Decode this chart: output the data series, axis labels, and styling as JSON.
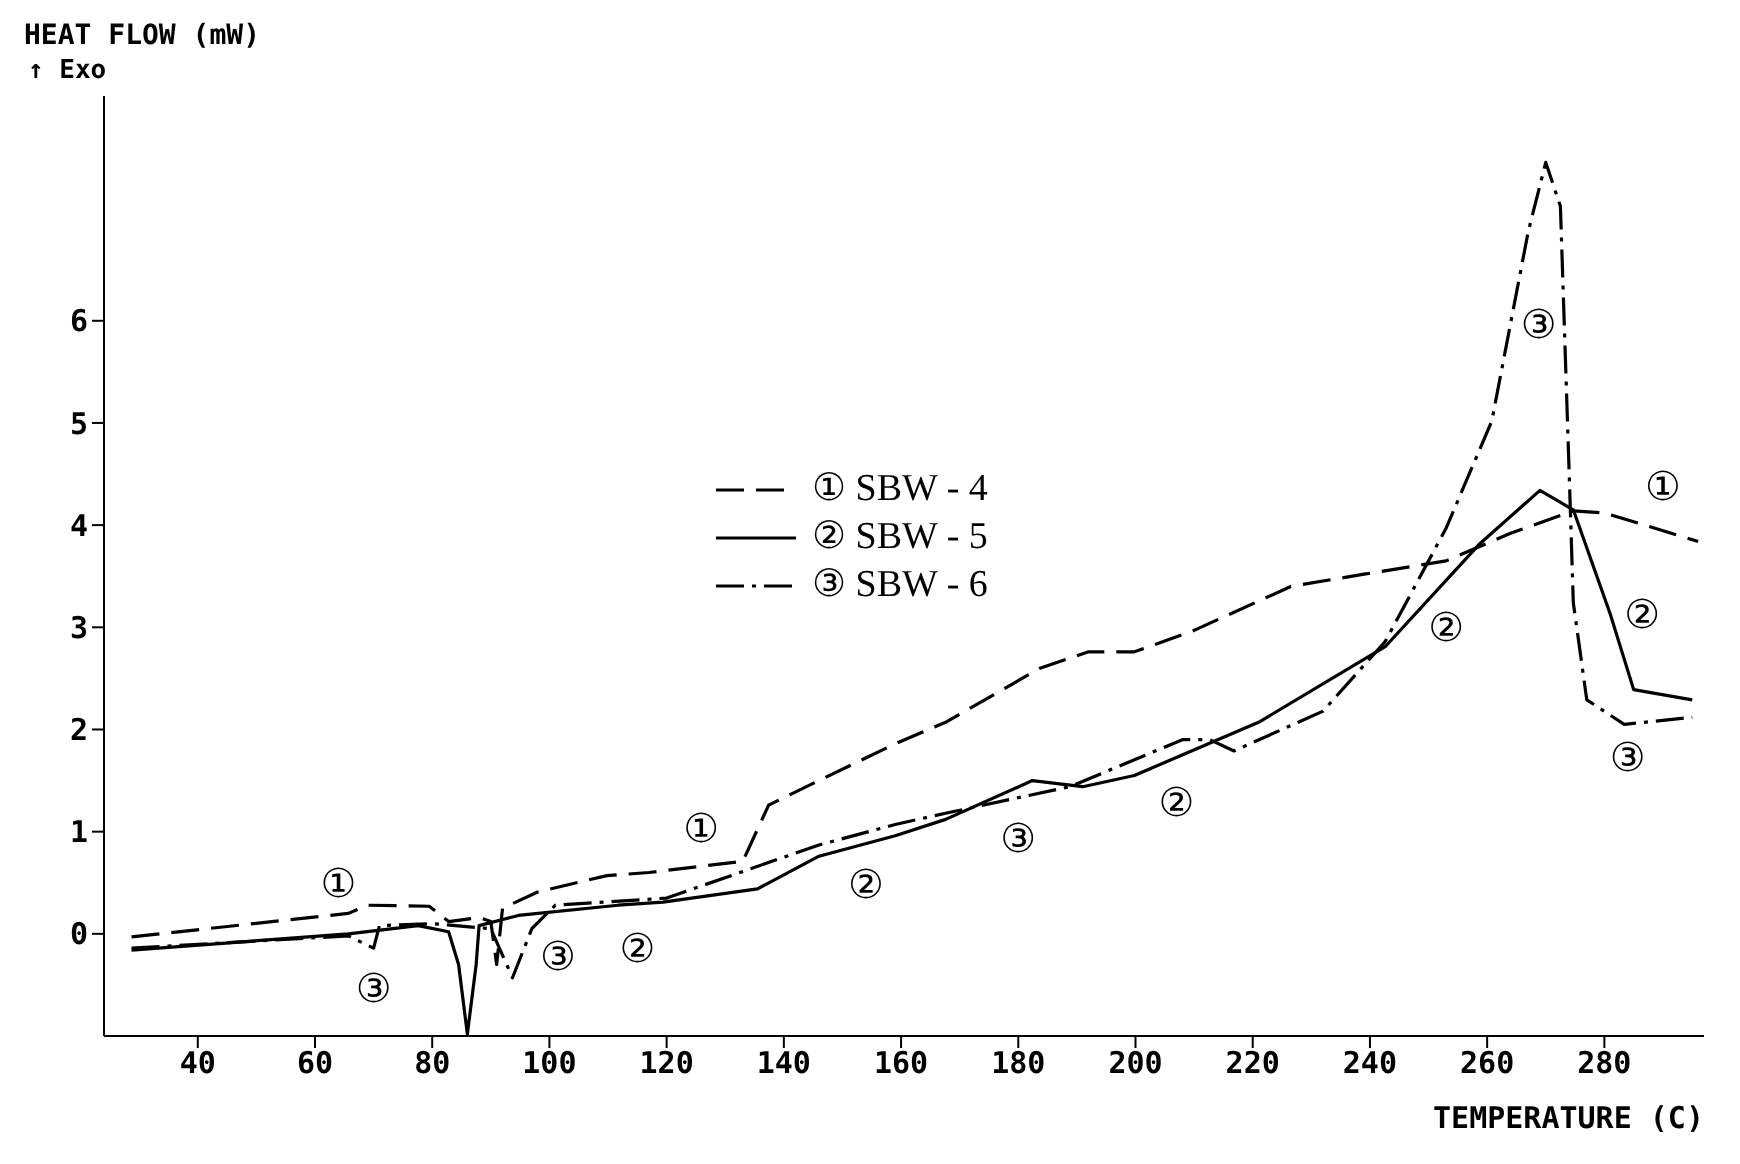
{
  "chart_data": {
    "type": "line",
    "xlabel": "TEMPERATURE (C)",
    "ylabel": "HEAT FLOW (mW)",
    "subtitle": "↑ Exo",
    "xlim": [
      24,
      297
    ],
    "ylim": [
      -1,
      8.2
    ],
    "xticks": [
      40,
      60,
      80,
      100,
      120,
      140,
      160,
      180,
      200,
      220,
      240,
      260,
      280
    ],
    "yticks": [
      0,
      1,
      2,
      3,
      4,
      5,
      6
    ],
    "grid": false,
    "legend": "center",
    "marker": "none",
    "series": [
      {
        "name": "① SBW - 4",
        "color": "#000000",
        "line_style": "dashed",
        "x": [
          28.7,
          65.7,
          69,
          79.5,
          82.8,
          88,
          90,
          91,
          92,
          98,
          109.8,
          117,
          133,
          137.4,
          146,
          159,
          167.6,
          183.7,
          192,
          199.8,
          210,
          226.5,
          239,
          253,
          264,
          274.7,
          280,
          296
        ],
        "values": [
          -0.03,
          0.2,
          0.28,
          0.27,
          0.12,
          0.16,
          0.12,
          -0.3,
          0.25,
          0.41,
          0.57,
          0.6,
          0.71,
          1.26,
          1.5,
          1.86,
          2.07,
          2.6,
          2.76,
          2.76,
          2.97,
          3.4,
          3.52,
          3.65,
          3.92,
          4.14,
          4.12,
          3.84
        ]
      },
      {
        "name": "② SBW - 5",
        "color": "#000000",
        "line_style": "solid",
        "x": [
          28.7,
          65.7,
          77.6,
          82.8,
          84.5,
          86,
          87.5,
          88,
          94.7,
          111.7,
          119.4,
          135.5,
          146,
          159,
          167.6,
          182.4,
          191,
          199.8,
          221,
          242.6,
          258.6,
          269,
          274.7,
          281,
          285,
          295
        ],
        "values": [
          -0.16,
          0,
          0.08,
          0.02,
          -0.3,
          -0.98,
          -0.3,
          0.08,
          0.18,
          0.28,
          0.31,
          0.44,
          0.76,
          0.96,
          1.12,
          1.5,
          1.44,
          1.55,
          2.07,
          2.81,
          3.81,
          4.34,
          4.15,
          3.13,
          2.39,
          2.29
        ]
      },
      {
        "name": "③ SBW - 6",
        "color": "#000000",
        "line_style": "dashdot",
        "x": [
          28.7,
          65.7,
          70,
          71,
          80,
          90,
          93.7,
          97,
          101,
          120,
          146,
          159,
          167.6,
          188.8,
          208,
          212.7,
          216.8,
          232,
          242.6,
          253,
          260.8,
          267,
          270,
          272.5,
          274,
          274.7,
          277,
          283.4,
          295
        ],
        "values": [
          -0.14,
          -0.02,
          -0.14,
          0.08,
          0.1,
          0.05,
          -0.43,
          0.05,
          0.28,
          0.35,
          0.87,
          1.07,
          1.18,
          1.44,
          1.9,
          1.9,
          1.79,
          2.18,
          2.86,
          3.97,
          5.02,
          6.87,
          7.55,
          7.12,
          4.5,
          3.24,
          2.29,
          2.05,
          2.12
        ]
      }
    ],
    "annotations": [
      {
        "text": "①",
        "x": 64,
        "y": 0.19
      },
      {
        "text": "③",
        "x": 70,
        "y": -0.14
      },
      {
        "text": "③",
        "x": 96,
        "y": -0.1
      },
      {
        "text": "②",
        "x": 115,
        "y": 0.29
      },
      {
        "text": "①",
        "x": 130,
        "y": 0.69
      },
      {
        "text": "②",
        "x": 154,
        "y": 0.88
      },
      {
        "text": "③",
        "x": 180,
        "y": 1.33
      },
      {
        "text": "②",
        "x": 207,
        "y": 1.72
      },
      {
        "text": "②",
        "x": 253,
        "y": 3.47
      },
      {
        "text": "②",
        "x": 281,
        "y": 3.13
      },
      {
        "text": "③",
        "x": 284,
        "y": 2.05
      },
      {
        "text": "①",
        "x": 290,
        "y": 3.95
      },
      {
        "text": "③",
        "x": 264,
        "y": 5.97
      }
    ]
  }
}
